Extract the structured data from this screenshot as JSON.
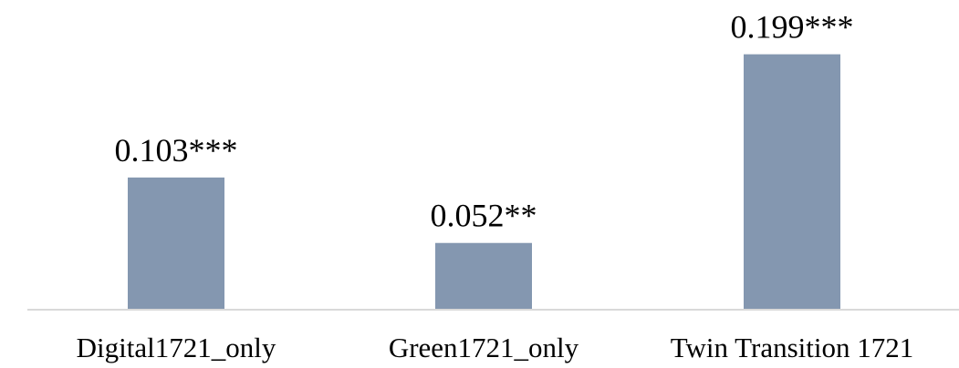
{
  "chart_data": {
    "type": "bar",
    "categories": [
      "Digital1721_only",
      "Green1721_only",
      "Twin Transition 1721"
    ],
    "values": [
      0.103,
      0.052,
      0.199
    ],
    "data_labels": [
      "0.103***",
      "0.052**",
      "0.199***"
    ],
    "title": "",
    "xlabel": "",
    "ylabel": "",
    "ylim": [
      0,
      0.22
    ],
    "grid": false,
    "legend": "none",
    "colors": {
      "bar": "#8497b0",
      "axis": "#d9d9d9",
      "text": "#000000"
    }
  }
}
